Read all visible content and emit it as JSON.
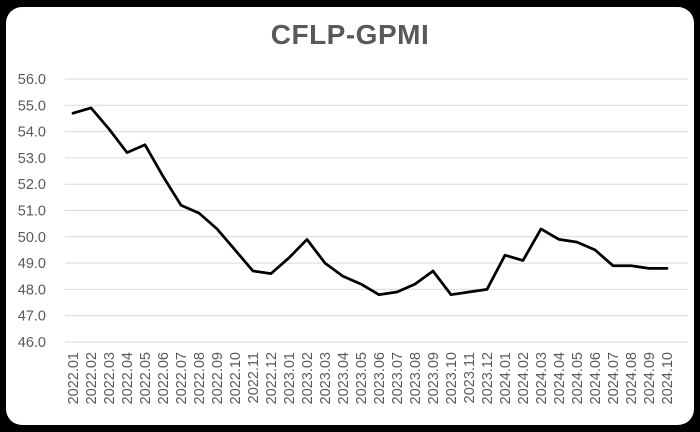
{
  "page": {
    "background_color": "#000000",
    "card_color": "#ffffff"
  },
  "chart_data": {
    "type": "line",
    "title": "CFLP-GPMI",
    "series_name": "CFLP-GPMI",
    "categories": [
      "2022.01",
      "2022.02",
      "2022.03",
      "2022.04",
      "2022.05",
      "2022.06",
      "2022.07",
      "2022.08",
      "2022.09",
      "2022.10",
      "2022.11",
      "2022.12",
      "2023.01",
      "2023.02",
      "2023.03",
      "2023.04",
      "2023.05",
      "2023.06",
      "2023.07",
      "2023.08",
      "2023.09",
      "2023.10",
      "2023.11",
      "2023.12",
      "2024.01",
      "2024.02",
      "2024.03",
      "2024.04",
      "2024.05",
      "2024.06",
      "2024.07",
      "2024.08",
      "2024.09",
      "2024.10"
    ],
    "values": [
      54.7,
      54.9,
      54.1,
      53.2,
      53.5,
      52.3,
      51.2,
      50.9,
      50.3,
      49.5,
      48.7,
      48.6,
      49.2,
      49.9,
      49.0,
      48.5,
      48.2,
      47.8,
      47.9,
      48.2,
      48.7,
      47.8,
      47.9,
      48.0,
      49.3,
      49.1,
      50.3,
      49.9,
      49.8,
      49.5,
      48.9,
      48.9,
      48.8,
      48.8
    ],
    "xlabel": "",
    "ylabel": "",
    "ylim": [
      46.0,
      56.0
    ],
    "ytick_step": 1.0,
    "ytick_labels": [
      "46.0",
      "47.0",
      "48.0",
      "49.0",
      "50.0",
      "51.0",
      "52.0",
      "53.0",
      "54.0",
      "55.0",
      "56.0"
    ],
    "grid": true,
    "legend_position": "none",
    "x_label_rotation": -90,
    "line_color": "#000000",
    "gridline_color": "#d9d9d9",
    "axis_label_color": "#595959",
    "title_color": "#595959"
  }
}
